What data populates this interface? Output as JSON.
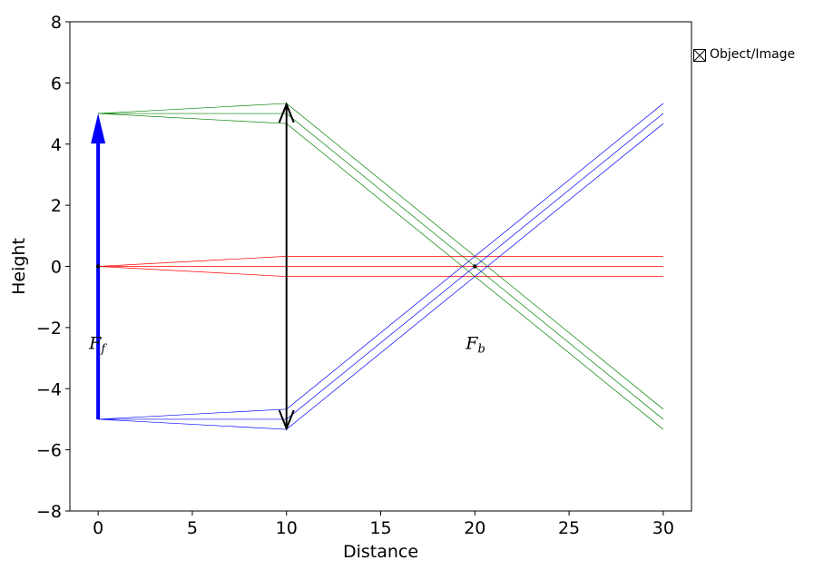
{
  "chart_data": {
    "type": "line",
    "xlabel": "Distance",
    "ylabel": "Height",
    "xlim": [
      -1.5,
      31.5
    ],
    "ylim": [
      -8,
      8
    ],
    "xticks": [
      0,
      5,
      10,
      15,
      20,
      25,
      30
    ],
    "yticks": [
      8,
      6,
      4,
      2,
      0,
      -2,
      -4,
      -6,
      -8
    ],
    "ytick_labels": [
      "8",
      "6",
      "4",
      "2",
      "0",
      "−2",
      "−4",
      "−6",
      "−8"
    ],
    "grid": false,
    "object_arrow": {
      "x": 0,
      "y_from": -5,
      "y_to": 5,
      "color": "#0000ff"
    },
    "lens": {
      "x": 10,
      "y_from": -5.3,
      "y_to": 5.3,
      "color": "#000000"
    },
    "rays": [
      {
        "color": "#008000",
        "x": [
          0,
          10,
          30
        ],
        "y": [
          5,
          5.33,
          -4.67
        ]
      },
      {
        "color": "#008000",
        "x": [
          0,
          10,
          30
        ],
        "y": [
          5,
          5.0,
          -5.0
        ]
      },
      {
        "color": "#008000",
        "x": [
          0,
          10,
          30
        ],
        "y": [
          5,
          4.67,
          -5.33
        ]
      },
      {
        "color": "#ff0000",
        "x": [
          0,
          10,
          30
        ],
        "y": [
          0,
          0.33,
          0.33
        ]
      },
      {
        "color": "#ff0000",
        "x": [
          0,
          10,
          30
        ],
        "y": [
          0,
          0,
          0
        ]
      },
      {
        "color": "#ff0000",
        "x": [
          0,
          10,
          30
        ],
        "y": [
          0,
          -0.33,
          -0.33
        ]
      },
      {
        "color": "#0000ff",
        "x": [
          0,
          10,
          30
        ],
        "y": [
          -5,
          -4.67,
          5.33
        ]
      },
      {
        "color": "#0000ff",
        "x": [
          0,
          10,
          30
        ],
        "y": [
          -5,
          -5.0,
          5.0
        ]
      },
      {
        "color": "#0000ff",
        "x": [
          0,
          10,
          30
        ],
        "y": [
          -5,
          -5.33,
          4.67
        ]
      }
    ],
    "focal_points": [
      {
        "x": 0,
        "y": 0,
        "label_main": "F",
        "label_sub": "f",
        "label_y": -2.5
      },
      {
        "x": 20,
        "y": 0,
        "label_main": "F",
        "label_sub": "b",
        "label_y": -2.5
      }
    ],
    "legend": {
      "label": "Object/Image",
      "placement": "outside-top-right"
    }
  }
}
